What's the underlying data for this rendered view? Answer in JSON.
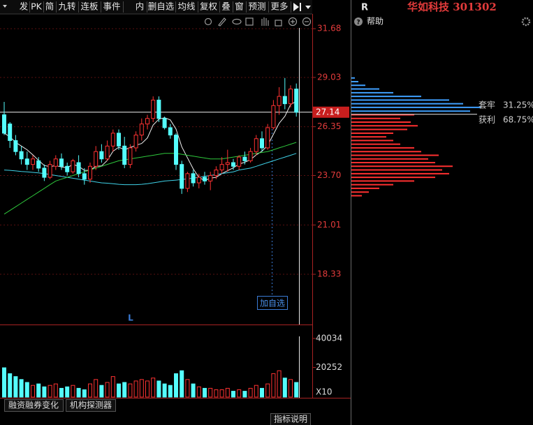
{
  "toolbar": [
    "发",
    "PK",
    "简",
    "九转",
    "连板",
    "事件",
    "内",
    "删自选",
    "均线",
    "复权",
    "叠",
    "窗",
    "预测",
    "更多"
  ],
  "stock": {
    "marker": "R",
    "name": "华如科技 301302"
  },
  "help": "帮助",
  "chart_data": {
    "type": "candlestick",
    "ylim": [
      15.6,
      32.48
    ],
    "yticks": [
      31.68,
      29.03,
      26.35,
      {
        "value": 23.7,
        "label": "23.70"
      },
      21.01,
      18.33
    ],
    "current_price": 27.14,
    "annotation": "加自选",
    "marker": "L",
    "candles": [
      [
        27.0,
        27.7,
        25.9,
        26.0
      ],
      [
        26.5,
        26.6,
        25.2,
        25.6
      ],
      [
        25.6,
        25.9,
        24.8,
        25.0
      ],
      [
        25.0,
        25.3,
        24.3,
        24.6
      ],
      [
        24.6,
        25.0,
        24.0,
        24.3
      ],
      [
        24.3,
        24.8,
        24.0,
        24.6
      ],
      [
        24.5,
        24.7,
        23.9,
        24.1
      ],
      [
        24.1,
        24.3,
        23.4,
        23.6
      ],
      [
        23.6,
        24.5,
        23.5,
        24.3
      ],
      [
        24.2,
        24.8,
        24.0,
        24.6
      ],
      [
        24.6,
        24.9,
        24.0,
        24.2
      ],
      [
        24.2,
        24.4,
        23.7,
        23.9
      ],
      [
        23.9,
        24.6,
        23.8,
        24.5
      ],
      [
        24.4,
        24.8,
        23.6,
        23.8
      ],
      [
        23.8,
        24.1,
        23.2,
        23.5
      ],
      [
        23.5,
        24.4,
        23.3,
        24.2
      ],
      [
        24.2,
        25.3,
        24.0,
        25.0
      ],
      [
        25.0,
        25.4,
        24.4,
        24.6
      ],
      [
        24.6,
        25.6,
        24.5,
        25.3
      ],
      [
        25.3,
        26.2,
        25.0,
        26.0
      ],
      [
        26.0,
        26.2,
        25.1,
        25.3
      ],
      [
        25.3,
        25.8,
        24.1,
        24.3
      ],
      [
        24.3,
        25.4,
        24.1,
        25.2
      ],
      [
        25.2,
        26.1,
        25.0,
        25.9
      ],
      [
        25.9,
        26.8,
        25.6,
        26.5
      ],
      [
        26.5,
        27.0,
        26.2,
        26.8
      ],
      [
        26.8,
        28.0,
        26.6,
        27.8
      ],
      [
        27.8,
        28.0,
        26.6,
        26.8
      ],
      [
        26.8,
        26.9,
        26.2,
        26.3
      ],
      [
        26.3,
        26.5,
        25.7,
        25.9
      ],
      [
        25.9,
        26.0,
        24.0,
        24.3
      ],
      [
        24.3,
        24.5,
        22.7,
        23.0
      ],
      [
        23.0,
        23.9,
        22.8,
        23.8
      ],
      [
        23.8,
        24.0,
        23.1,
        23.3
      ],
      [
        23.3,
        23.8,
        23.0,
        23.6
      ],
      [
        23.6,
        23.9,
        23.2,
        23.4
      ],
      [
        23.4,
        23.9,
        22.9,
        23.7
      ],
      [
        23.7,
        24.2,
        23.5,
        24.0
      ],
      [
        24.0,
        24.7,
        23.8,
        24.3
      ],
      [
        24.3,
        25.1,
        23.9,
        24.4
      ],
      [
        24.4,
        24.6,
        24.0,
        24.2
      ],
      [
        24.2,
        24.8,
        24.0,
        24.7
      ],
      [
        24.7,
        25.0,
        24.3,
        24.5
      ],
      [
        24.5,
        25.2,
        24.4,
        25.0
      ],
      [
        25.0,
        25.9,
        24.8,
        25.7
      ],
      [
        25.7,
        26.1,
        25.0,
        25.2
      ],
      [
        25.2,
        26.5,
        25.1,
        26.3
      ],
      [
        26.3,
        27.8,
        26.2,
        27.5
      ],
      [
        27.5,
        28.5,
        27.0,
        28.0
      ],
      [
        28.0,
        29.0,
        27.3,
        27.6
      ],
      [
        27.6,
        28.6,
        27.4,
        28.4
      ],
      [
        28.4,
        28.7,
        26.9,
        27.14
      ]
    ],
    "ma_lines": [
      {
        "color": "#f0f0f0",
        "values": [
          26.0,
          25.8,
          25.5,
          25.3,
          25.1,
          24.82,
          24.52,
          24.24,
          24.18,
          24.24,
          24.16,
          24.12,
          24.3,
          24.2,
          23.98,
          23.98,
          24.2,
          24.22,
          24.52,
          25.02,
          25.24,
          25.1,
          25.22,
          25.34,
          25.44,
          25.74,
          26.44,
          26.76,
          26.84,
          26.72,
          26.22,
          25.26,
          24.66,
          24.06,
          23.6,
          23.42,
          23.56,
          23.6,
          23.8,
          23.96,
          24.12,
          24.32,
          24.42,
          24.56,
          24.82,
          25.02,
          25.34,
          25.94,
          26.54,
          26.92,
          27.56,
          27.73
        ]
      },
      {
        "color": "#3fd2e8",
        "values": [
          24.0,
          23.98,
          23.95,
          23.92,
          23.9,
          23.87,
          23.84,
          23.8,
          23.75,
          23.7,
          23.65,
          23.6,
          23.55,
          23.5,
          23.45,
          23.4,
          23.35,
          23.3,
          23.28,
          23.25,
          23.22,
          23.2,
          23.2,
          23.2,
          23.22,
          23.25,
          23.3,
          23.35,
          23.4,
          23.42,
          23.45,
          23.48,
          23.52,
          23.56,
          23.6,
          23.65,
          23.7,
          23.75,
          23.8,
          23.85,
          23.9,
          24.0,
          24.05,
          24.1,
          24.2,
          24.3,
          24.4,
          24.5,
          24.6,
          24.7,
          24.8,
          24.9
        ]
      },
      {
        "color": "#2ec83c",
        "values": [
          21.6,
          21.8,
          22.0,
          22.2,
          22.4,
          22.6,
          22.8,
          23.0,
          23.2,
          23.4,
          23.5,
          23.6,
          23.7,
          23.8,
          23.9,
          24.0,
          24.1,
          24.2,
          24.3,
          24.4,
          24.5,
          24.55,
          24.6,
          24.65,
          24.7,
          24.75,
          24.8,
          24.85,
          24.9,
          24.9,
          24.9,
          24.85,
          24.8,
          24.75,
          24.7,
          24.65,
          24.6,
          24.6,
          24.6,
          24.65,
          24.7,
          24.75,
          24.8,
          24.85,
          24.9,
          24.95,
          25.0,
          25.1,
          25.2,
          25.3,
          25.4,
          25.5
        ]
      }
    ]
  },
  "volume": {
    "type": "bar",
    "ylim": [
      0,
      48600
    ],
    "yticks": [
      40034,
      20252
    ],
    "multiplier": "X10",
    "values": [
      20000,
      16000,
      14000,
      12000,
      10000,
      8000,
      9000,
      7000,
      8000,
      9000,
      6000,
      7000,
      8000,
      6000,
      5000,
      9000,
      12000,
      8000,
      10000,
      14000,
      9000,
      10000,
      9000,
      11000,
      12000,
      11000,
      13000,
      11000,
      9000,
      8000,
      16000,
      18000,
      12000,
      9000,
      7000,
      6000,
      6000,
      5000,
      5000,
      6000,
      4000,
      5000,
      4000,
      6000,
      8000,
      6000,
      9000,
      16000,
      18000,
      13000,
      12000,
      10000
    ]
  },
  "chips": {
    "prices": [
      22.6,
      22.8,
      23.0,
      23.2,
      23.4,
      23.6,
      23.8,
      24.0,
      24.2,
      24.4,
      24.6,
      24.8,
      25.0,
      25.2,
      25.4,
      25.6,
      25.8,
      26.0,
      26.2,
      26.4,
      26.6,
      26.8,
      27.0,
      27.2,
      27.4,
      27.6,
      27.8,
      28.0,
      28.2,
      28.4,
      28.6,
      28.8,
      29.0
    ],
    "values": [
      15,
      25,
      40,
      60,
      90,
      120,
      140,
      130,
      145,
      120,
      110,
      125,
      100,
      90,
      70,
      60,
      50,
      60,
      80,
      95,
      85,
      70,
      90,
      170,
      185,
      160,
      140,
      100,
      60,
      40,
      20,
      10,
      5
    ],
    "names": [
      "套牢",
      "获利"
    ],
    "ratios": [
      31.25,
      68.75
    ],
    "ratio_labels": [
      "31.25%",
      "68.75%"
    ]
  },
  "tabs": [
    "融资融券变化",
    "机构探测器"
  ],
  "footer": "指标说明"
}
